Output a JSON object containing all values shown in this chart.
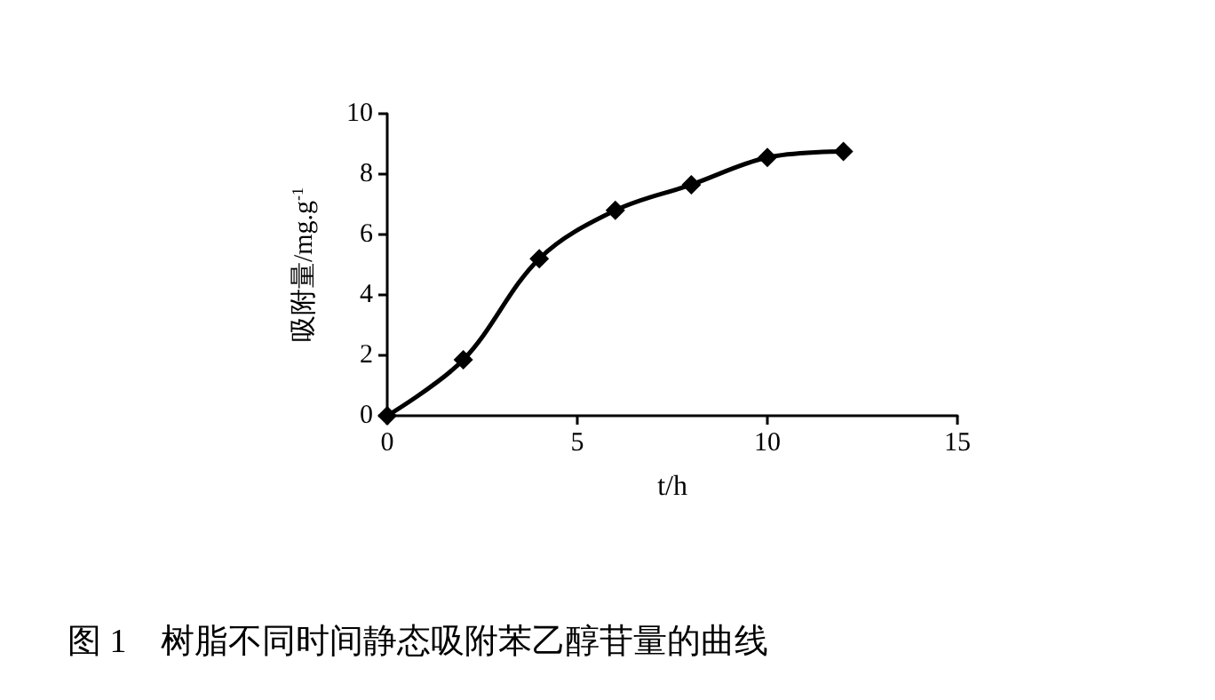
{
  "chart_data": {
    "type": "line",
    "title": "图 1　树脂不同时间静态吸附苯乙醇苷量的曲线",
    "xlabel": "t/h",
    "ylabel": "吸附量/mg.g$^{-1}$",
    "x": [
      0,
      2,
      4,
      6,
      8,
      10,
      12
    ],
    "series": [
      {
        "color": "#000000",
        "values": [
          0,
          1.85,
          5.2,
          6.8,
          7.65,
          8.55,
          8.75
        ]
      }
    ],
    "xlim": [
      0,
      15
    ],
    "xticks": [
      0,
      5,
      10,
      15
    ],
    "ylim": [
      0,
      10
    ],
    "yticks": [
      0,
      2,
      4,
      6,
      8,
      10
    ],
    "grid": false,
    "marker": "diamond",
    "line_style": "solid"
  }
}
